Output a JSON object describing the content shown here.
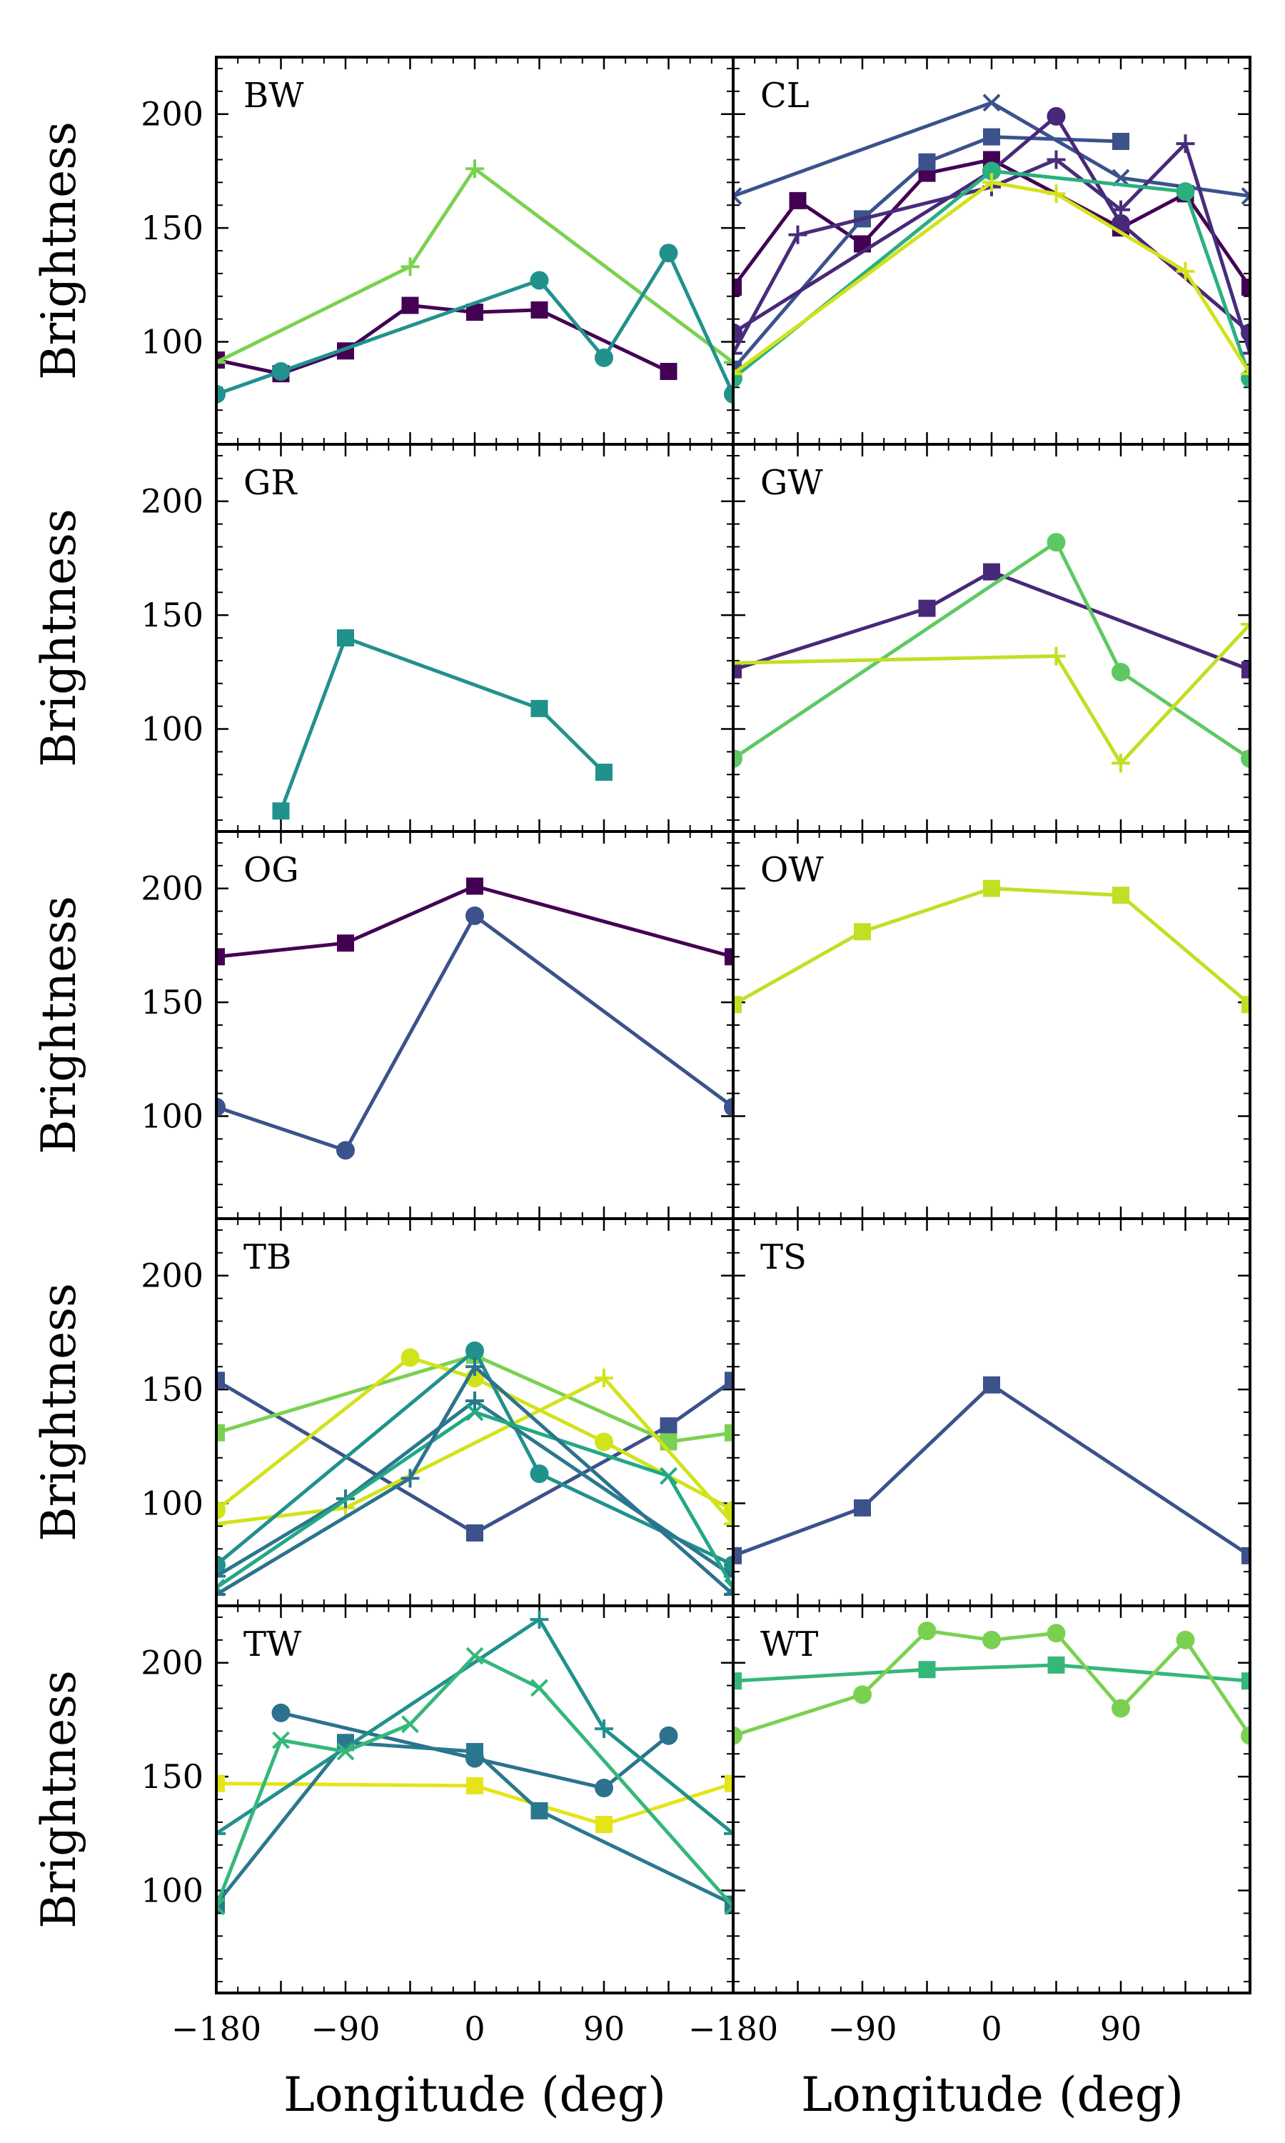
{
  "chart_data": {
    "type": "line",
    "layout": "5 rows x 2 columns, shared axes",
    "xlabel": "Longitude (deg)",
    "ylabel": "Brightness",
    "xlim": [
      -180,
      180
    ],
    "ylim": [
      55,
      225
    ],
    "xticks": [
      -180,
      -90,
      0,
      90
    ],
    "xtick_labels": [
      "−180",
      "−90",
      "0",
      "90"
    ],
    "yticks": [
      100,
      150,
      200
    ],
    "ytick_labels": [
      "100",
      "150",
      "200"
    ],
    "panels": [
      {
        "label": "BW",
        "series": [
          {
            "color": "#440154",
            "marker": "s",
            "x": [
              -180,
              -135,
              -90,
              -45,
              0,
              45,
              135
            ],
            "y": [
              92,
              86,
              96,
              116,
              113,
              114,
              87
            ]
          },
          {
            "color": "#7ad151",
            "marker": "+",
            "x": [
              -180,
              -45,
              0,
              180
            ],
            "y": [
              91,
              133,
              176,
              91
            ]
          },
          {
            "color": "#21918c",
            "marker": "o",
            "x": [
              -180,
              -135,
              45,
              90,
              135,
              180
            ],
            "y": [
              77,
              87,
              127,
              93,
              139,
              77
            ]
          }
        ]
      },
      {
        "label": "CL",
        "series": [
          {
            "color": "#3b528b",
            "marker": "x",
            "x": [
              -180,
              0,
              90,
              180
            ],
            "y": [
              164,
              205,
              172,
              164
            ]
          },
          {
            "color": "#440154",
            "marker": "s",
            "x": [
              -180,
              -135,
              -90,
              -45,
              0,
              90,
              135,
              180
            ],
            "y": [
              124,
              162,
              143,
              174,
              180,
              150,
              165,
              124
            ]
          },
          {
            "color": "#3b528b",
            "marker": "s",
            "x": [
              -180,
              -90,
              -45,
              0,
              90
            ],
            "y": [
              88,
              154,
              179,
              190,
              188
            ]
          },
          {
            "color": "#482878",
            "marker": "o",
            "x": [
              -180,
              0,
              45,
              90,
              180
            ],
            "y": [
              104,
              175,
              199,
              152,
              104
            ]
          },
          {
            "color": "#472d7b",
            "marker": "+",
            "x": [
              -180,
              -135,
              0,
              45,
              90,
              135,
              180
            ],
            "y": [
              95,
              147,
              168,
              180,
              158,
              187,
              95
            ]
          },
          {
            "color": "#2ab07f",
            "marker": "o",
            "x": [
              -180,
              0,
              135,
              180
            ],
            "y": [
              84,
              175,
              166,
              84
            ]
          },
          {
            "color": "#d2e21b",
            "marker": "+",
            "x": [
              -180,
              0,
              45,
              135,
              180
            ],
            "y": [
              86,
              170,
              165,
              131,
              86
            ]
          }
        ]
      },
      {
        "label": "GR",
        "series": [
          {
            "color": "#21918c",
            "marker": "s",
            "x": [
              -135,
              -90,
              45,
              90
            ],
            "y": [
              64,
              140,
              109,
              81
            ]
          }
        ]
      },
      {
        "label": "GW",
        "series": [
          {
            "color": "#482878",
            "marker": "s",
            "x": [
              -180,
              -45,
              0,
              180
            ],
            "y": [
              126,
              153,
              169,
              126
            ]
          },
          {
            "color": "#5ec962",
            "marker": "o",
            "x": [
              -180,
              45,
              90,
              180
            ],
            "y": [
              87,
              182,
              125,
              87
            ]
          },
          {
            "color": "#c2df23",
            "marker": "+",
            "x": [
              -180,
              45,
              90,
              180
            ],
            "y": [
              129,
              132,
              85,
              146
            ]
          }
        ]
      },
      {
        "label": "OG",
        "series": [
          {
            "color": "#440154",
            "marker": "s",
            "x": [
              -180,
              -90,
              0,
              180
            ],
            "y": [
              170,
              176,
              201,
              170
            ]
          },
          {
            "color": "#3b528b",
            "marker": "o",
            "x": [
              -180,
              -90,
              0,
              180
            ],
            "y": [
              104,
              85,
              188,
              104
            ]
          }
        ]
      },
      {
        "label": "OW",
        "series": [
          {
            "color": "#c2df23",
            "marker": "s",
            "x": [
              -180,
              -90,
              0,
              90,
              180
            ],
            "y": [
              149,
              181,
              200,
              197,
              149
            ]
          }
        ]
      },
      {
        "label": "TB",
        "series": [
          {
            "color": "#3b528b",
            "marker": "s",
            "x": [
              -180,
              0,
              135,
              180
            ],
            "y": [
              154,
              87,
              134,
              154
            ]
          },
          {
            "color": "#7ad151",
            "marker": "s",
            "x": [
              -180,
              0,
              135,
              180
            ],
            "y": [
              131,
              165,
              127,
              131
            ]
          },
          {
            "color": "#d2e21b",
            "marker": "o",
            "x": [
              -180,
              -45,
              0,
              90,
              180
            ],
            "y": [
              97,
              164,
              155,
              127,
              97
            ]
          },
          {
            "color": "#d2e21b",
            "marker": "+",
            "x": [
              -180,
              -90,
              90,
              180
            ],
            "y": [
              91,
              98,
              155,
              91
            ]
          },
          {
            "color": "#21918c",
            "marker": "o",
            "x": [
              -180,
              0,
              45,
              180
            ],
            "y": [
              73,
              167,
              113,
              73
            ]
          },
          {
            "color": "#2a788e",
            "marker": "+",
            "x": [
              -180,
              -90,
              0,
              180
            ],
            "y": [
              68,
              102,
              145,
              68
            ]
          },
          {
            "color": "#22a884",
            "marker": "x",
            "x": [
              -180,
              0,
              135,
              180
            ],
            "y": [
              63,
              140,
              112,
              63
            ]
          },
          {
            "color": "#2c728e",
            "marker": "+",
            "x": [
              -180,
              -45,
              0,
              180
            ],
            "y": [
              60,
              111,
              160,
              60
            ]
          }
        ]
      },
      {
        "label": "TS",
        "series": [
          {
            "color": "#3b528b",
            "marker": "s",
            "x": [
              -180,
              -90,
              0,
              180
            ],
            "y": [
              77,
              98,
              152,
              77
            ]
          }
        ]
      },
      {
        "label": "TW",
        "series": [
          {
            "color": "#e5e419",
            "marker": "s",
            "x": [
              -180,
              0,
              90,
              180
            ],
            "y": [
              147,
              146,
              129,
              147
            ]
          },
          {
            "color": "#2c728e",
            "marker": "o",
            "x": [
              -135,
              0,
              90,
              135
            ],
            "y": [
              178,
              158,
              145,
              168
            ]
          },
          {
            "color": "#2a788e",
            "marker": "s",
            "x": [
              -180,
              -90,
              0,
              45,
              180
            ],
            "y": [
              94,
              165,
              161,
              135,
              94
            ]
          },
          {
            "color": "#21918c",
            "marker": "+",
            "x": [
              -180,
              45,
              90,
              180
            ],
            "y": [
              125,
              219,
              171,
              125
            ]
          },
          {
            "color": "#35b779",
            "marker": "x",
            "x": [
              -180,
              -135,
              -90,
              -45,
              0,
              45,
              180
            ],
            "y": [
              93,
              166,
              161,
              173,
              203,
              189,
              93
            ]
          }
        ]
      },
      {
        "label": "WT",
        "series": [
          {
            "color": "#35b779",
            "marker": "s",
            "x": [
              -180,
              -45,
              45,
              180
            ],
            "y": [
              192,
              197,
              199,
              192
            ]
          },
          {
            "color": "#7ad151",
            "marker": "o",
            "x": [
              -180,
              -90,
              -45,
              0,
              45,
              90,
              135,
              180
            ],
            "y": [
              168,
              186,
              214,
              210,
              213,
              180,
              210,
              168
            ]
          }
        ]
      }
    ]
  }
}
